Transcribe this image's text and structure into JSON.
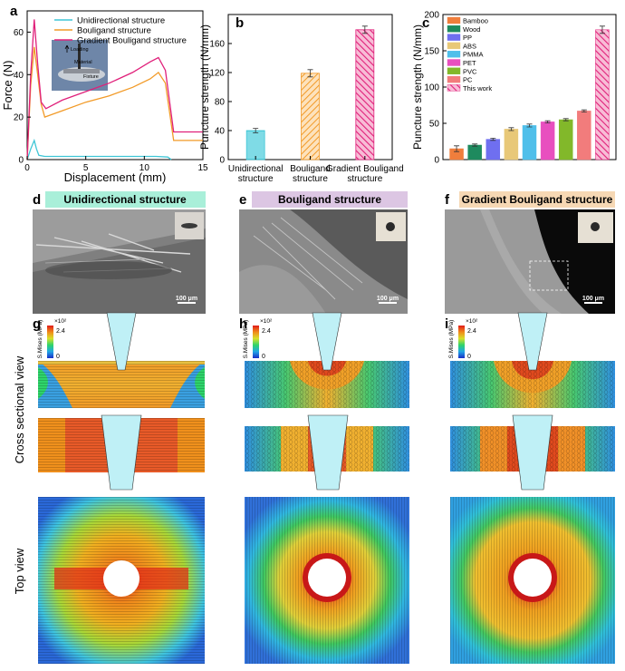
{
  "panels": {
    "a": "a",
    "b": "b",
    "c": "c",
    "d": "d",
    "e": "e",
    "f": "f",
    "g": "g",
    "h": "h",
    "i": "i"
  },
  "panel_a": {
    "xlabel": "Displacement (mm)",
    "ylabel": "Force (N)",
    "inset_labels": [
      "Loading",
      "Material",
      "Fixture"
    ]
  },
  "panel_de_titles": {
    "d": "Unidirectional structure",
    "e": "Bouligand structure",
    "f": "Gradient Bouligand structure"
  },
  "scale_bar": "100 μm",
  "colorbar": {
    "title": "S.Mises (MPa)",
    "exponent": "×10²",
    "max": "2.4",
    "min": "0"
  },
  "row_labels": {
    "cross": "Cross sectional view",
    "top": "Top view"
  },
  "colors": {
    "unidirectional": "#3fc6d6",
    "bouligand": "#f29a27",
    "gradient": "#e0207a",
    "head_d": "#a9efd9",
    "head_e": "#dcc6e3",
    "head_f": "#f6d8b4"
  },
  "chart_data": [
    {
      "type": "line",
      "panel": "a",
      "xlabel": "Displacement (mm)",
      "ylabel": "Force (N)",
      "xlim": [
        0,
        15
      ],
      "ylim": [
        0,
        70
      ],
      "xticks": [
        0,
        5,
        10,
        15
      ],
      "yticks": [
        0,
        20,
        40,
        60
      ],
      "legend": "top-right",
      "series": [
        {
          "name": "Unidirectional structure",
          "color": "#3fc6d6",
          "x": [
            0,
            0.3,
            0.6,
            0.8,
            1.0,
            1.5,
            3,
            6,
            9,
            11,
            12,
            12.3
          ],
          "y": [
            0,
            5,
            9,
            5,
            2,
            1.5,
            1.5,
            1.5,
            1.5,
            1.5,
            1.2,
            0
          ]
        },
        {
          "name": "Bouligand structure",
          "color": "#f29a27",
          "x": [
            0,
            0.3,
            0.6,
            0.9,
            1.2,
            1.5,
            3,
            5,
            7,
            9,
            10.5,
            11.2,
            11.8,
            12.5,
            15
          ],
          "y": [
            0,
            35,
            53,
            40,
            26,
            20,
            23,
            27,
            30,
            34,
            38,
            41,
            36,
            9,
            9
          ]
        },
        {
          "name": "Gradient Bouligand structure",
          "color": "#e0207a",
          "x": [
            0,
            0.3,
            0.6,
            0.9,
            1.2,
            1.6,
            3,
            5,
            7,
            9,
            10.5,
            11.2,
            11.8,
            12.5,
            15
          ],
          "y": [
            0,
            40,
            66,
            45,
            27,
            24,
            28,
            32,
            36,
            41,
            46,
            48,
            42,
            13,
            13
          ]
        }
      ]
    },
    {
      "type": "bar",
      "panel": "b",
      "ylabel": "Puncture strength (N/mm)",
      "categories": [
        "Unidirectional structure",
        "Bouligand structure",
        "Gradient Bouligand structure"
      ],
      "category_lines": [
        [
          "Unidirectional",
          "structure"
        ],
        [
          "Bouligand",
          "structure"
        ],
        [
          "Gradient Bouligand",
          "structure"
        ]
      ],
      "values": [
        40,
        119,
        179
      ],
      "errors": [
        3,
        5,
        5
      ],
      "colors": [
        "#3fc6d6",
        "#f29a27",
        "#e0207a"
      ],
      "ylim": [
        0,
        200
      ],
      "yticks": [
        0,
        40,
        80,
        120,
        160,
        200
      ]
    },
    {
      "type": "bar",
      "panel": "c",
      "ylabel": "Puncture strength (N/mm)",
      "categories": [
        "Bamboo",
        "Wood",
        "PP",
        "ABS",
        "PMMA",
        "PET",
        "PVC",
        "PC",
        "This work"
      ],
      "values": [
        15,
        20,
        28,
        42,
        47,
        52,
        55,
        67,
        179
      ],
      "errors": [
        4,
        1.5,
        1.5,
        2,
        2,
        1.5,
        1.5,
        1.5,
        5
      ],
      "colors": [
        "#f07e3c",
        "#1e8a5e",
        "#6f6ff0",
        "#e8c878",
        "#4fbfea",
        "#e84fbf",
        "#82b82a",
        "#f27c7c",
        "#e0207a"
      ],
      "ylim": [
        0,
        200
      ],
      "yticks": [
        0,
        50,
        100,
        150,
        200
      ],
      "legend": "top-left"
    }
  ]
}
